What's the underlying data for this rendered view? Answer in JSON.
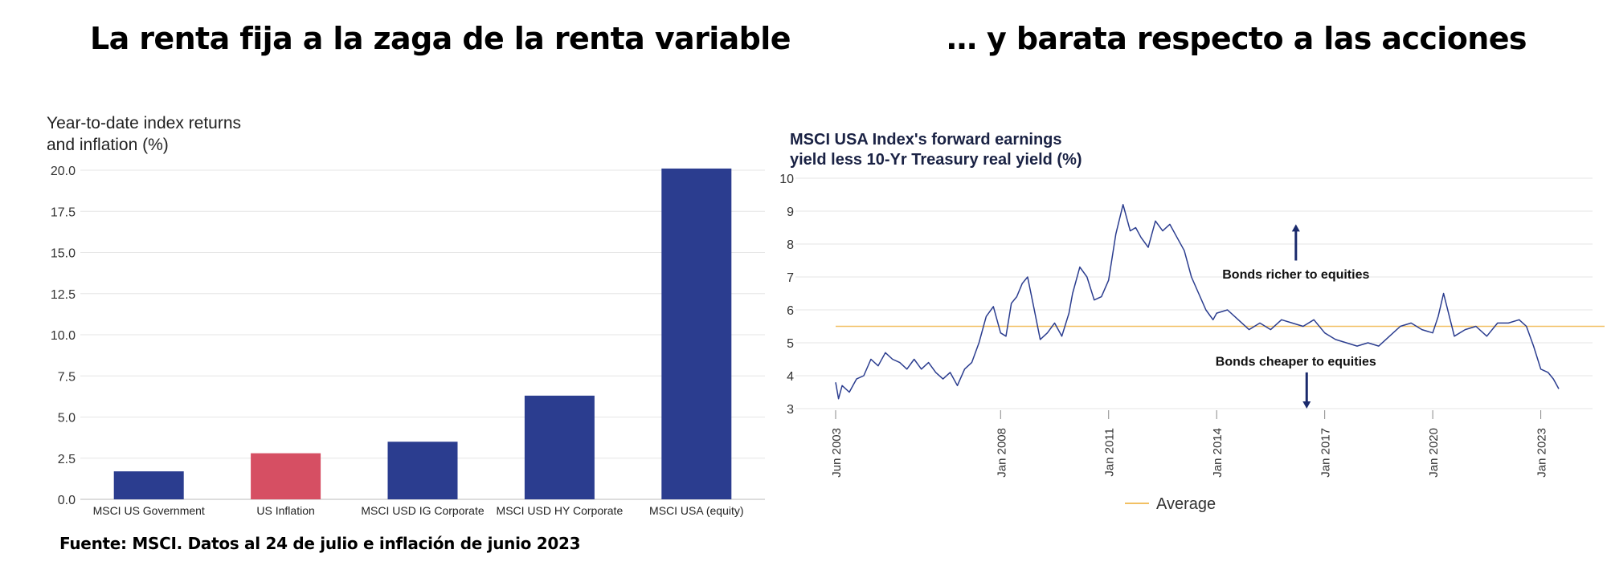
{
  "page": {
    "left_title": "La renta fija a la zaga de la renta variable",
    "right_title": "… y barata respecto a las acciones",
    "source": "Fuente: MSCI. Datos al 24 de julio e inflación de junio 2023"
  },
  "chart_data": [
    {
      "type": "bar",
      "title_lines": [
        "Year-to-date index returns",
        "and inflation (%)"
      ],
      "categories": [
        "MSCI US Government",
        "US Inflation",
        "MSCI USD IG Corporate",
        "MSCI USD HY Corporate",
        "MSCI USA (equity)"
      ],
      "values": [
        1.7,
        2.8,
        3.5,
        6.3,
        20.1
      ],
      "colors": [
        "#2b3d8f",
        "#d64f63",
        "#2b3d8f",
        "#2b3d8f",
        "#2b3d8f"
      ],
      "yticks": [
        "0.0",
        "2.5",
        "5.0",
        "7.5",
        "10.0",
        "12.5",
        "15.0",
        "17.5",
        "20.0"
      ],
      "ylim": [
        0,
        20
      ],
      "grid": true
    },
    {
      "type": "line",
      "title_lines": [
        "MSCI USA Index's forward earnings",
        "yield less 10-Yr Treasury real yield (%)"
      ],
      "yticks": [
        "3",
        "4",
        "5",
        "6",
        "7",
        "8",
        "9",
        "10"
      ],
      "ylim": [
        3,
        10
      ],
      "x_range": [
        2003.42,
        2023.5
      ],
      "xticks": [
        {
          "x": 2003.42,
          "label": "Jun 2003"
        },
        {
          "x": 2008.0,
          "label": "Jan 2008"
        },
        {
          "x": 2011.0,
          "label": "Jan 2011"
        },
        {
          "x": 2014.0,
          "label": "Jan 2014"
        },
        {
          "x": 2017.0,
          "label": "Jan 2017"
        },
        {
          "x": 2020.0,
          "label": "Jan 2020"
        },
        {
          "x": 2023.0,
          "label": "Jan 2023"
        }
      ],
      "average": 5.5,
      "legend": "Average",
      "annotations": {
        "upper": "Bonds richer to equities",
        "lower": "Bonds cheaper to equities"
      },
      "annotation_x": [
        2016.2,
        2016.5
      ],
      "annotation_arrow_y": {
        "upper_from": 7.5,
        "upper_to": 8.6,
        "lower_from": 4.1,
        "lower_to": 3.0
      },
      "annotation_text_y": [
        7.1,
        4.45
      ],
      "series": [
        {
          "name": "Forward earnings yield less real yield",
          "x": [
            2003.42,
            2003.5,
            2003.6,
            2003.8,
            2004.0,
            2004.2,
            2004.4,
            2004.6,
            2004.8,
            2005.0,
            2005.2,
            2005.4,
            2005.6,
            2005.8,
            2006.0,
            2006.2,
            2006.4,
            2006.6,
            2006.8,
            2007.0,
            2007.2,
            2007.4,
            2007.6,
            2007.8,
            2008.0,
            2008.15,
            2008.3,
            2008.45,
            2008.6,
            2008.75,
            2008.9,
            2009.1,
            2009.3,
            2009.5,
            2009.7,
            2009.9,
            2010.0,
            2010.2,
            2010.4,
            2010.6,
            2010.8,
            2011.0,
            2011.2,
            2011.4,
            2011.6,
            2011.75,
            2011.9,
            2012.1,
            2012.3,
            2012.5,
            2012.7,
            2012.9,
            2013.1,
            2013.3,
            2013.5,
            2013.7,
            2013.9,
            2014.0,
            2014.3,
            2014.6,
            2014.9,
            2015.2,
            2015.5,
            2015.8,
            2016.1,
            2016.4,
            2016.7,
            2017.0,
            2017.3,
            2017.6,
            2017.9,
            2018.2,
            2018.5,
            2018.8,
            2019.1,
            2019.4,
            2019.7,
            2020.0,
            2020.15,
            2020.3,
            2020.6,
            2020.9,
            2021.2,
            2021.5,
            2021.8,
            2022.1,
            2022.4,
            2022.6,
            2022.8,
            2023.0,
            2023.2,
            2023.35,
            2023.5
          ],
          "y": [
            3.8,
            3.3,
            3.7,
            3.5,
            3.9,
            4.0,
            4.5,
            4.3,
            4.7,
            4.5,
            4.4,
            4.2,
            4.5,
            4.2,
            4.4,
            4.1,
            3.9,
            4.1,
            3.7,
            4.2,
            4.4,
            5.0,
            5.8,
            6.1,
            5.3,
            5.2,
            6.2,
            6.4,
            6.8,
            7.0,
            6.2,
            5.1,
            5.3,
            5.6,
            5.2,
            5.9,
            6.5,
            7.3,
            7.0,
            6.3,
            6.4,
            6.9,
            8.3,
            9.2,
            8.4,
            8.5,
            8.2,
            7.9,
            8.7,
            8.4,
            8.6,
            8.2,
            7.8,
            7.0,
            6.5,
            6.0,
            5.7,
            5.9,
            6.0,
            5.7,
            5.4,
            5.6,
            5.4,
            5.7,
            5.6,
            5.5,
            5.7,
            5.3,
            5.1,
            5.0,
            4.9,
            5.0,
            4.9,
            5.2,
            5.5,
            5.6,
            5.4,
            5.3,
            5.8,
            6.5,
            5.2,
            5.4,
            5.5,
            5.2,
            5.6,
            5.6,
            5.7,
            5.5,
            4.9,
            4.2,
            4.1,
            3.9,
            3.6
          ]
        }
      ]
    }
  ]
}
